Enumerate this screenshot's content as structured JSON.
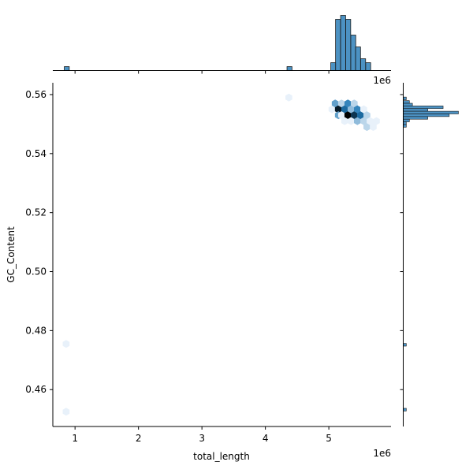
{
  "chart_data": {
    "type": "hexbin",
    "kind": "jointplot",
    "xlabel": "total_length",
    "ylabel": "GC_Content",
    "x_offset_label": "1e6",
    "marginal_x_offset_label": "1e6",
    "xlim": [
      0.65,
      5.98
    ],
    "ylim": [
      0.4475,
      0.564
    ],
    "x_ticks": [
      1,
      2,
      3,
      4,
      5
    ],
    "x_tick_labels": [
      "1",
      "2",
      "3",
      "4",
      "5"
    ],
    "y_ticks": [
      0.46,
      0.48,
      0.5,
      0.52,
      0.54,
      0.56
    ],
    "y_tick_labels": [
      "0.46",
      "0.48",
      "0.50",
      "0.52",
      "0.54",
      "0.56"
    ],
    "color": "#1f77b4",
    "hexbins": [
      {
        "x": 0.86,
        "y": 0.4755,
        "count": 1
      },
      {
        "x": 0.86,
        "y": 0.4525,
        "count": 1
      },
      {
        "x": 4.37,
        "y": 0.559,
        "count": 1
      },
      {
        "x": 5.05,
        "y": 0.555,
        "count": 1
      },
      {
        "x": 5.1,
        "y": 0.557,
        "count": 4
      },
      {
        "x": 5.15,
        "y": 0.555,
        "count": 9
      },
      {
        "x": 5.15,
        "y": 0.553,
        "count": 4
      },
      {
        "x": 5.2,
        "y": 0.557,
        "count": 2
      },
      {
        "x": 5.25,
        "y": 0.555,
        "count": 6
      },
      {
        "x": 5.2,
        "y": 0.553,
        "count": 1
      },
      {
        "x": 5.3,
        "y": 0.557,
        "count": 5
      },
      {
        "x": 5.3,
        "y": 0.553,
        "count": 10
      },
      {
        "x": 5.25,
        "y": 0.551,
        "count": 1
      },
      {
        "x": 5.35,
        "y": 0.555,
        "count": 3
      },
      {
        "x": 5.4,
        "y": 0.557,
        "count": 2
      },
      {
        "x": 5.4,
        "y": 0.553,
        "count": 8
      },
      {
        "x": 5.35,
        "y": 0.551,
        "count": 1
      },
      {
        "x": 5.45,
        "y": 0.555,
        "count": 5
      },
      {
        "x": 5.45,
        "y": 0.551,
        "count": 3
      },
      {
        "x": 5.5,
        "y": 0.553,
        "count": 6
      },
      {
        "x": 5.55,
        "y": 0.555,
        "count": 1
      },
      {
        "x": 5.55,
        "y": 0.551,
        "count": 2
      },
      {
        "x": 5.6,
        "y": 0.553,
        "count": 2
      },
      {
        "x": 5.6,
        "y": 0.549,
        "count": 2
      },
      {
        "x": 5.65,
        "y": 0.551,
        "count": 1
      },
      {
        "x": 5.7,
        "y": 0.549,
        "count": 1
      },
      {
        "x": 5.75,
        "y": 0.551,
        "count": 1
      }
    ],
    "marginal_x": {
      "bin_width": 0.0785,
      "bins": [
        {
          "x": 0.87,
          "count": 1
        },
        {
          "x": 4.38,
          "count": 1
        },
        {
          "x": 5.07,
          "count": 2
        },
        {
          "x": 5.145,
          "count": 13
        },
        {
          "x": 5.225,
          "count": 14
        },
        {
          "x": 5.305,
          "count": 13
        },
        {
          "x": 5.385,
          "count": 9
        },
        {
          "x": 5.46,
          "count": 6
        },
        {
          "x": 5.54,
          "count": 3
        },
        {
          "x": 5.62,
          "count": 2
        }
      ]
    },
    "marginal_y": {
      "bin_height": 0.0009,
      "bins": [
        {
          "y": 0.5587,
          "count": 1
        },
        {
          "y": 0.5575,
          "count": 2
        },
        {
          "y": 0.5566,
          "count": 3
        },
        {
          "y": 0.5557,
          "count": 13
        },
        {
          "y": 0.5548,
          "count": 8
        },
        {
          "y": 0.5539,
          "count": 18
        },
        {
          "y": 0.553,
          "count": 15
        },
        {
          "y": 0.5521,
          "count": 8
        },
        {
          "y": 0.5512,
          "count": 2
        },
        {
          "y": 0.5503,
          "count": 1
        },
        {
          "y": 0.5494,
          "count": 1
        },
        {
          "y": 0.4752,
          "count": 1
        },
        {
          "y": 0.4532,
          "count": 1
        }
      ]
    }
  }
}
